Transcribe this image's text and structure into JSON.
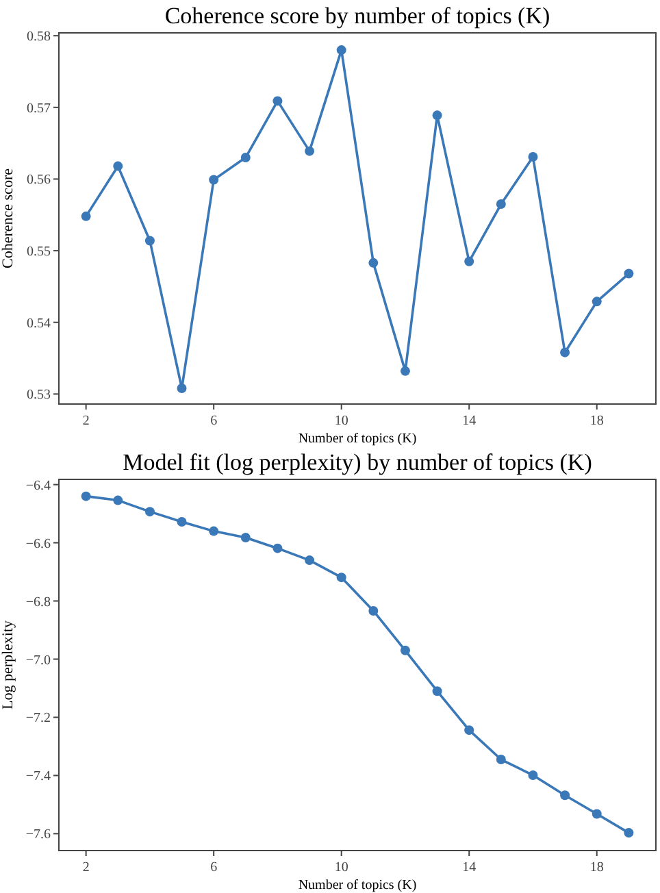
{
  "chart_data": [
    {
      "type": "line",
      "title": "Coherence score by number of topics (K)",
      "xlabel": "Number of topics (K)",
      "ylabel": "Coherence score",
      "x": [
        2,
        3,
        4,
        5,
        6,
        7,
        8,
        9,
        10,
        11,
        12,
        13,
        14,
        15,
        16,
        17,
        18,
        19
      ],
      "series": [
        {
          "color": "#3a78b8",
          "values": [
            0.5548,
            0.5618,
            0.5514,
            0.5308,
            0.5599,
            0.563,
            0.5709,
            0.5639,
            0.578,
            0.5483,
            0.5332,
            0.5689,
            0.5485,
            0.5565,
            0.5631,
            0.5358,
            0.5429,
            0.5468
          ]
        }
      ],
      "xlim": [
        1.15,
        19.85
      ],
      "xticks": [
        2,
        6,
        10,
        14,
        18
      ],
      "ylim": [
        0.5286,
        0.5804
      ],
      "yticks": [
        0.53,
        0.54,
        0.55,
        0.56,
        0.57,
        0.58
      ],
      "grid": false,
      "marker": "circle",
      "line_style": "solid"
    },
    {
      "type": "line",
      "title": "Model fit (log perplexity) by number of topics (K)",
      "xlabel": "Number of topics (K)",
      "ylabel": "Log perplexity",
      "x": [
        2,
        3,
        4,
        5,
        6,
        7,
        8,
        9,
        10,
        11,
        12,
        13,
        14,
        15,
        16,
        17,
        18,
        19
      ],
      "series": [
        {
          "color": "#3a78b8",
          "values": [
            -6.44,
            -6.454,
            -6.493,
            -6.528,
            -6.56,
            -6.582,
            -6.619,
            -6.66,
            -6.719,
            -6.834,
            -6.97,
            -7.11,
            -7.244,
            -7.345,
            -7.399,
            -7.468,
            -7.532,
            -7.597
          ]
        }
      ],
      "xlim": [
        1.15,
        19.85
      ],
      "xticks": [
        2,
        6,
        10,
        14,
        18
      ],
      "ylim": [
        -7.658,
        -6.382
      ],
      "yticks": [
        {
          "value": -7.6,
          "label": "−7.6"
        },
        {
          "value": -7.4,
          "label": "−7.4"
        },
        {
          "value": -7.2,
          "label": "−7.2"
        },
        {
          "value": -7.0,
          "label": "−7.0"
        },
        {
          "value": -6.8,
          "label": "−6.8"
        },
        {
          "value": -6.6,
          "label": "−6.6"
        },
        {
          "value": -6.4,
          "label": "−6.4"
        }
      ],
      "grid": false,
      "marker": "circle",
      "line_style": "solid"
    }
  ]
}
